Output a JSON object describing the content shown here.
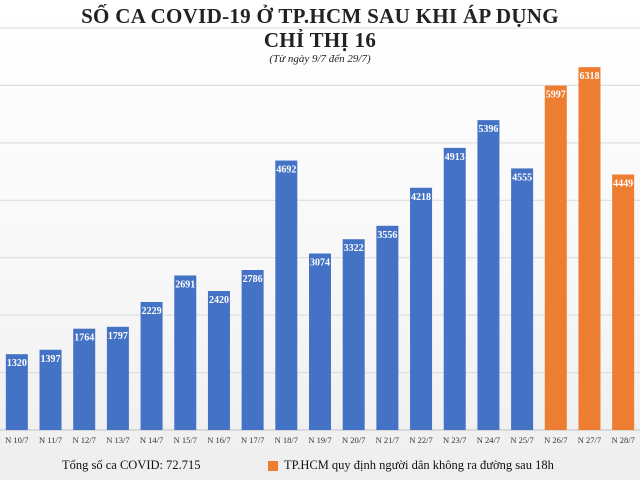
{
  "chart_data": {
    "type": "bar",
    "title": "SỐ CA COVID-19 Ở TP.HCM SAU KHI ÁP DỤNG",
    "title_line2": "CHỈ THỊ 16",
    "subtitle": "(Từ ngày 9/7 đến 29/7)",
    "categories": [
      "N 10/7",
      "N 11/7",
      "N 12/7",
      "N 13/7",
      "N 14/7",
      "N 15/7",
      "N 16/7",
      "N 17/7",
      "N 18/7",
      "N 19/7",
      "N 20/7",
      "N 21/7",
      "N 22/7",
      "N 23/7",
      "N 24/7",
      "N 25/7",
      "N 26/7",
      "N 27/7",
      "N 28/7"
    ],
    "values": [
      1320,
      1397,
      1764,
      1797,
      2229,
      2691,
      2420,
      2786,
      4692,
      3074,
      3322,
      3556,
      4218,
      4913,
      5396,
      4555,
      5997,
      6318,
      4449
    ],
    "highlighted_from_index": 16,
    "colors": {
      "default": "#4472c4",
      "highlight": "#ed7d31"
    },
    "ylim": [
      0,
      7000
    ],
    "grid": true,
    "legend_position": "bottom"
  },
  "footer": {
    "total": "Tổng số ca COVID: 72.715",
    "legend_label": "TP.HCM quy định người dân không ra đường sau 18h"
  }
}
